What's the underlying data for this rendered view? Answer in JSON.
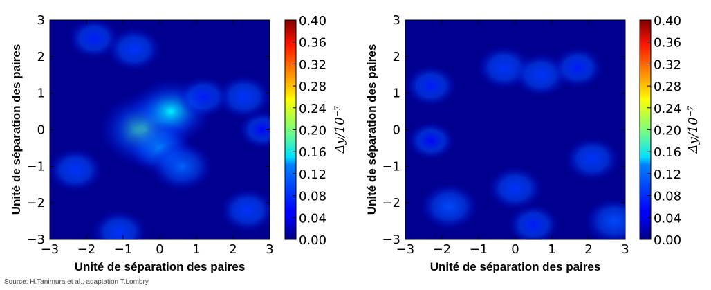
{
  "chart_data": [
    {
      "type": "heatmap",
      "xlabel": "Unité de séparation des paires",
      "ylabel": "Unité de séparation des paires",
      "xlim": [
        -3,
        3
      ],
      "ylim": [
        -3,
        3
      ],
      "xticks": [
        "−3",
        "−2",
        "−1",
        "0",
        "1",
        "2",
        "3"
      ],
      "yticks": [
        "3",
        "2",
        "1",
        "0",
        "−1",
        "−2",
        "−3"
      ],
      "colorbar": {
        "label": "Δy/10⁻⁷",
        "range": [
          0.0,
          0.4
        ],
        "ticks": [
          "0.40",
          "0.36",
          "0.32",
          "0.28",
          "0.24",
          "0.20",
          "0.16",
          "0.12",
          "0.08",
          "0.04",
          "0.00"
        ],
        "colormap": "jet"
      },
      "blobs": [
        {
          "x": -0.4,
          "y": 0.0,
          "value": 0.18
        },
        {
          "x": 0.3,
          "y": 0.5,
          "value": 0.15
        },
        {
          "x": 0.0,
          "y": -0.5,
          "value": 0.1
        },
        {
          "x": -1.8,
          "y": 2.5,
          "value": 0.06
        },
        {
          "x": -0.7,
          "y": 2.2,
          "value": 0.07
        },
        {
          "x": -2.3,
          "y": -1.1,
          "value": 0.07
        },
        {
          "x": 0.6,
          "y": -1.0,
          "value": 0.09
        },
        {
          "x": 2.3,
          "y": 0.9,
          "value": 0.07
        },
        {
          "x": 1.2,
          "y": 0.9,
          "value": 0.06
        },
        {
          "x": 2.4,
          "y": -2.2,
          "value": 0.07
        },
        {
          "x": -1.1,
          "y": -2.8,
          "value": 0.07
        },
        {
          "x": 2.8,
          "y": 0.0,
          "value": 0.05
        }
      ]
    },
    {
      "type": "heatmap",
      "xlabel": "Unité de séparation des paires",
      "ylabel": "Unité de séparation des paires",
      "xlim": [
        -3,
        3
      ],
      "ylim": [
        -3,
        3
      ],
      "xticks": [
        "−3",
        "−2",
        "−1",
        "0",
        "1",
        "2",
        "3"
      ],
      "yticks": [
        "3",
        "2",
        "1",
        "0",
        "−1",
        "−2",
        "−3"
      ],
      "colorbar": {
        "label": "Δy/10⁻⁷",
        "range": [
          0.0,
          0.4
        ],
        "ticks": [
          "0.40",
          "0.36",
          "0.32",
          "0.28",
          "0.24",
          "0.20",
          "0.16",
          "0.12",
          "0.08",
          "0.04",
          "0.00"
        ],
        "colormap": "jet"
      },
      "blobs": [
        {
          "x": -0.3,
          "y": 1.7,
          "value": 0.07
        },
        {
          "x": 0.7,
          "y": 1.5,
          "value": 0.07
        },
        {
          "x": -2.3,
          "y": 1.2,
          "value": 0.06
        },
        {
          "x": 1.7,
          "y": 1.7,
          "value": 0.06
        },
        {
          "x": -1.8,
          "y": -2.1,
          "value": 0.08
        },
        {
          "x": 0.0,
          "y": -1.6,
          "value": 0.07
        },
        {
          "x": 2.1,
          "y": -0.8,
          "value": 0.07
        },
        {
          "x": 2.7,
          "y": -2.5,
          "value": 0.08
        },
        {
          "x": -2.3,
          "y": -0.3,
          "value": 0.05
        },
        {
          "x": 0.5,
          "y": -2.6,
          "value": 0.06
        }
      ]
    }
  ],
  "source": "Source: H.Tanimura et al., adaptation T.Lombry"
}
